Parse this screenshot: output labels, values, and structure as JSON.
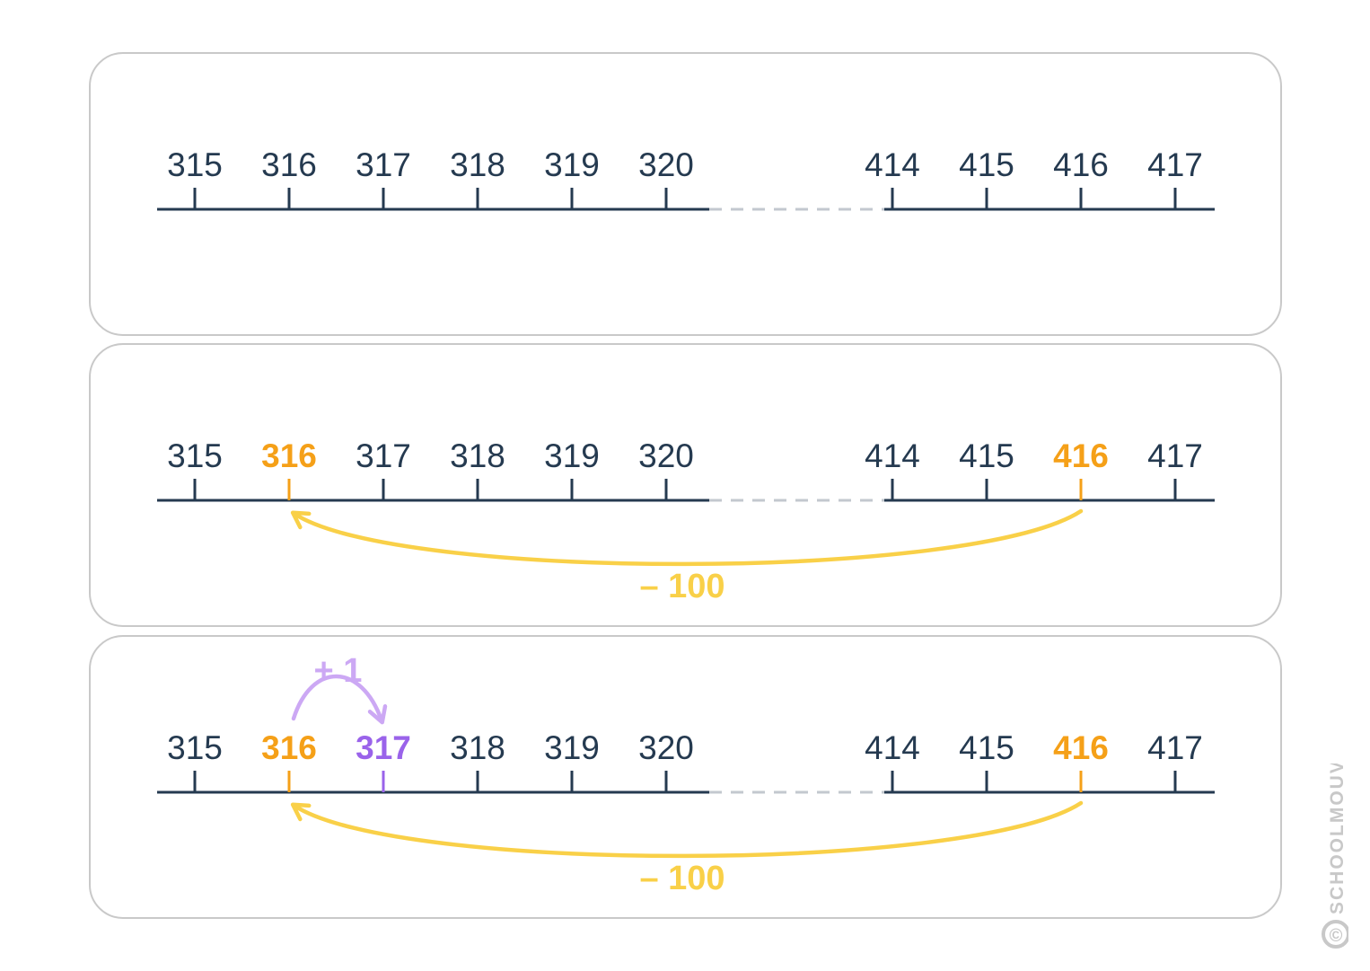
{
  "colors": {
    "line": "#253a50",
    "dash": "#c3c8cf",
    "orange": "#f5a018",
    "yellow": "#f9d048",
    "purple": "#9a63ea",
    "light_purple": "#cca8f4",
    "watermark": "#c8c8c8"
  },
  "left_numbers": [
    "315",
    "316",
    "317",
    "318",
    "319",
    "320"
  ],
  "right_numbers": [
    "414",
    "415",
    "416",
    "417"
  ],
  "panels": [
    {
      "highlights": {},
      "arrows": []
    },
    {
      "highlights": {
        "316": "orange",
        "416": "orange"
      },
      "arrows": [
        {
          "from": "416",
          "to": "316",
          "label": "– 100",
          "color": "yellow",
          "side": "below"
        }
      ]
    },
    {
      "highlights": {
        "316": "orange",
        "317": "purple",
        "416": "orange"
      },
      "arrows": [
        {
          "from": "316",
          "to": "317",
          "label": "+ 1",
          "color": "light_purple",
          "side": "above"
        },
        {
          "from": "416",
          "to": "316",
          "label": "– 100",
          "color": "yellow",
          "side": "below"
        }
      ]
    }
  ],
  "watermark": {
    "text": "SCHOOLMOUV",
    "symbol": "©",
    "icon": "copyright-icon"
  }
}
